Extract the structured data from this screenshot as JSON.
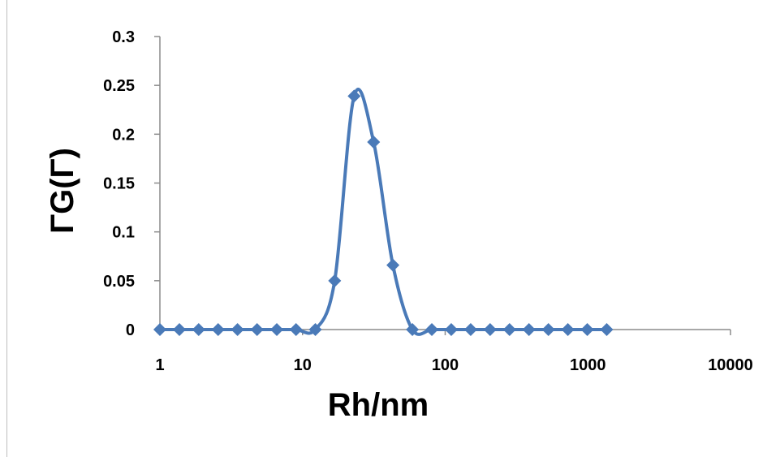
{
  "chart_data": {
    "type": "scatter",
    "xlabel": "Rh/nm",
    "ylabel": "ΓG(Γ)",
    "x_scale": "log",
    "xlim": [
      1,
      10000
    ],
    "ylim": [
      0,
      0.3
    ],
    "x_ticks": [
      "1",
      "10",
      "100",
      "1000",
      "10000"
    ],
    "y_ticks": [
      "0",
      "0.05",
      "0.1",
      "0.15",
      "0.2",
      "0.25",
      "0.3"
    ],
    "grid": false,
    "legend": "none",
    "line_style": "smooth line with diamond markers",
    "series": [
      {
        "color": "#4a7ab8",
        "x": [
          1.0,
          1.37,
          1.87,
          2.56,
          3.5,
          4.8,
          6.6,
          9.0,
          12.3,
          16.8,
          23.0,
          31.5,
          43.0,
          58.9,
          80.6,
          110.3,
          150.9,
          206.5,
          282.6,
          386.7,
          529.2,
          724.2,
          991.0,
          1356.0
        ],
        "y": [
          0,
          0,
          0,
          0,
          0,
          0,
          0,
          0,
          0,
          0.05,
          0.239,
          0.192,
          0.066,
          0,
          0,
          0,
          0,
          0,
          0,
          0,
          0,
          0,
          0,
          0
        ]
      }
    ]
  }
}
